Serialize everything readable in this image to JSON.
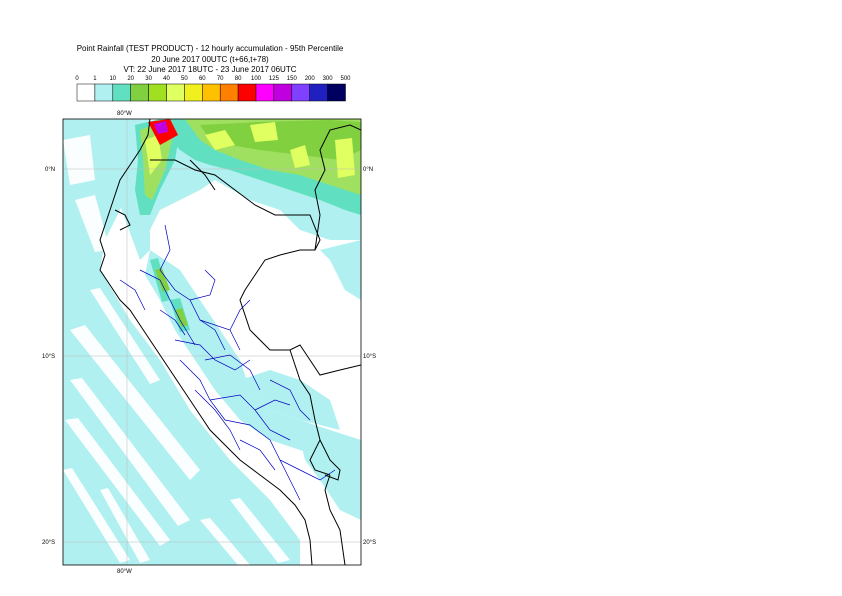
{
  "header": {
    "title": "Point Rainfall (TEST PRODUCT) - 12 hourly accumulation - 95th Percentile",
    "base_time": "20 June 2017 00UTC (t+66,t+78)",
    "valid_time": "VT: 22 June 2017 18UTC - 23 June 2017 06UTC"
  },
  "legend": {
    "thresholds": [
      "0",
      "1",
      "10",
      "20",
      "30",
      "40",
      "50",
      "60",
      "70",
      "80",
      "100",
      "125",
      "150",
      "200",
      "300",
      "500"
    ],
    "colors": [
      "#ffffff",
      "#b0f0f0",
      "#60e0c0",
      "#80d040",
      "#a0e020",
      "#e0ff60",
      "#f0f020",
      "#ffc000",
      "#ff8000",
      "#ff0000",
      "#ff00ff",
      "#c000e0",
      "#8040ff",
      "#2020c0",
      "#000060"
    ]
  },
  "map": {
    "lat_labels": {
      "n0": "0°N",
      "s10": "10°S",
      "s20": "20°S"
    },
    "lon_labels": {
      "top_80w": "80°W",
      "bottom_80w": "80°W"
    },
    "colors": {
      "ocean_light": "#b0f0f0",
      "ocean_mid": "#70e8d8",
      "green_light": "#a0e060",
      "green_mid": "#80d040",
      "yellow": "#e0ff60",
      "red": "#ff0000",
      "magenta": "#c000e0",
      "coast": "#000000",
      "regions": "#0000c0",
      "grid": "#bbbbbb"
    }
  }
}
